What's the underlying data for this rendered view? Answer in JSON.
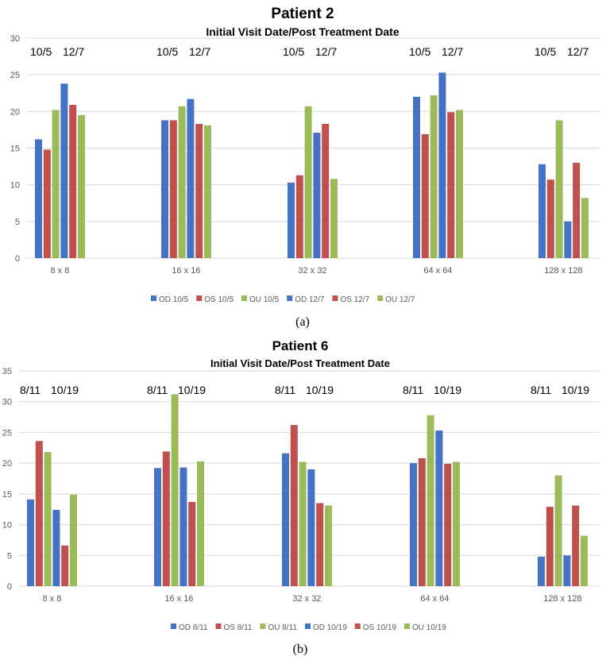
{
  "colors": {
    "OD": "#4472c4",
    "OS": "#c0504d",
    "OU": "#9bbb59",
    "grid": "#d9d9d9"
  },
  "chart_data": [
    {
      "type": "bar",
      "caption": "(a)",
      "title": "Patient 2",
      "subtitle": "Initial Visit Date/Post Treatment Date",
      "ylim": [
        0,
        30
      ],
      "yticks": [
        0,
        5,
        10,
        15,
        20,
        25,
        30
      ],
      "categories": [
        "8 x 8",
        "16 x 16",
        "32 x 32",
        "64 x 64",
        "128 x 128"
      ],
      "date_labels": [
        "10/5",
        "12/7"
      ],
      "series": [
        {
          "name": "OD 10/5",
          "color_key": "OD",
          "values": [
            16.2,
            18.8,
            10.3,
            22.0,
            12.8
          ]
        },
        {
          "name": "OS 10/5",
          "color_key": "OS",
          "values": [
            14.8,
            18.8,
            11.3,
            16.9,
            10.7
          ]
        },
        {
          "name": "OU 10/5",
          "color_key": "OU",
          "values": [
            20.2,
            20.7,
            20.7,
            22.2,
            18.8
          ]
        },
        {
          "name": "OD 12/7",
          "color_key": "OD",
          "values": [
            23.8,
            21.7,
            17.1,
            25.3,
            5.0
          ]
        },
        {
          "name": "OS 12/7",
          "color_key": "OS",
          "values": [
            20.9,
            18.3,
            18.3,
            19.9,
            13.0
          ]
        },
        {
          "name": "OU 12/7",
          "color_key": "OU",
          "values": [
            19.5,
            18.1,
            10.8,
            20.2,
            8.2
          ]
        }
      ]
    },
    {
      "type": "bar",
      "caption": "(b)",
      "title": "Patient 6",
      "subtitle": "Initial Visit Date/Post Treatment Date",
      "ylim": [
        0,
        35
      ],
      "yticks": [
        0,
        5,
        10,
        15,
        20,
        25,
        30,
        35
      ],
      "categories": [
        "8 x 8",
        "16 x 16",
        "32 x 32",
        "64 x 64",
        "128 x 128"
      ],
      "date_labels": [
        "8/11",
        "10/19"
      ],
      "series": [
        {
          "name": "OD 8/11",
          "color_key": "OD",
          "values": [
            14.1,
            19.2,
            21.6,
            20.0,
            4.8
          ]
        },
        {
          "name": "OS 8/11",
          "color_key": "OS",
          "values": [
            23.6,
            21.9,
            26.2,
            20.8,
            12.9
          ]
        },
        {
          "name": "OU 8/11",
          "color_key": "OU",
          "values": [
            21.8,
            31.2,
            20.2,
            27.8,
            18.0
          ]
        },
        {
          "name": "OD 10/19",
          "color_key": "OD",
          "values": [
            12.4,
            19.3,
            19.0,
            25.3,
            5.0
          ]
        },
        {
          "name": "OS 10/19",
          "color_key": "OS",
          "values": [
            6.6,
            13.7,
            13.5,
            19.9,
            13.1
          ]
        },
        {
          "name": "OU 10/19",
          "color_key": "OU",
          "values": [
            14.9,
            20.3,
            13.1,
            20.2,
            8.2
          ]
        }
      ]
    }
  ]
}
